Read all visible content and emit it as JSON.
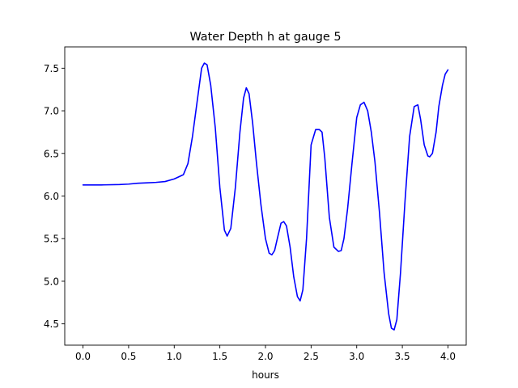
{
  "chart_data": {
    "type": "line",
    "title": "Water Depth h at gauge 5",
    "xlabel": "hours",
    "ylabel": "",
    "xlim": [
      -0.2,
      4.2
    ],
    "ylim": [
      4.25,
      7.75
    ],
    "xticks": [
      0.0,
      0.5,
      1.0,
      1.5,
      2.0,
      2.5,
      3.0,
      3.5,
      4.0
    ],
    "xtick_labels": [
      "0.0",
      "0.5",
      "1.0",
      "1.5",
      "2.0",
      "2.5",
      "3.0",
      "3.5",
      "4.0"
    ],
    "yticks": [
      4.5,
      5.0,
      5.5,
      6.0,
      6.5,
      7.0,
      7.5
    ],
    "ytick_labels": [
      "4.5",
      "5.0",
      "5.5",
      "6.0",
      "6.5",
      "7.0",
      "7.5"
    ],
    "grid": false,
    "legend": "none",
    "series": [
      {
        "color": "#0000ff",
        "x": [
          0.0,
          0.2,
          0.4,
          0.5,
          0.6,
          0.7,
          0.8,
          0.9,
          1.0,
          1.1,
          1.15,
          1.2,
          1.25,
          1.3,
          1.33,
          1.36,
          1.4,
          1.45,
          1.5,
          1.55,
          1.58,
          1.62,
          1.67,
          1.72,
          1.76,
          1.79,
          1.82,
          1.86,
          1.9,
          1.95,
          2.0,
          2.04,
          2.07,
          2.1,
          2.13,
          2.17,
          2.2,
          2.23,
          2.27,
          2.31,
          2.35,
          2.38,
          2.41,
          2.45,
          2.5,
          2.55,
          2.59,
          2.62,
          2.65,
          2.7,
          2.75,
          2.8,
          2.83,
          2.86,
          2.9,
          2.95,
          3.0,
          3.04,
          3.08,
          3.12,
          3.16,
          3.2,
          3.25,
          3.3,
          3.35,
          3.38,
          3.41,
          3.44,
          3.48,
          3.53,
          3.58,
          3.63,
          3.67,
          3.7,
          3.74,
          3.78,
          3.8,
          3.83,
          3.87,
          3.9,
          3.94,
          3.97,
          4.0
        ],
        "y": [
          6.13,
          6.13,
          6.135,
          6.14,
          6.15,
          6.155,
          6.16,
          6.17,
          6.2,
          6.25,
          6.38,
          6.7,
          7.1,
          7.5,
          7.56,
          7.54,
          7.3,
          6.8,
          6.1,
          5.6,
          5.53,
          5.62,
          6.1,
          6.75,
          7.15,
          7.27,
          7.2,
          6.85,
          6.4,
          5.9,
          5.5,
          5.33,
          5.31,
          5.36,
          5.5,
          5.68,
          5.7,
          5.65,
          5.4,
          5.05,
          4.82,
          4.77,
          4.9,
          5.5,
          6.6,
          6.78,
          6.78,
          6.75,
          6.45,
          5.75,
          5.4,
          5.35,
          5.36,
          5.5,
          5.85,
          6.4,
          6.92,
          7.07,
          7.1,
          7.0,
          6.75,
          6.4,
          5.8,
          5.1,
          4.62,
          4.45,
          4.43,
          4.55,
          5.1,
          5.95,
          6.7,
          7.05,
          7.07,
          6.9,
          6.6,
          6.47,
          6.46,
          6.5,
          6.75,
          7.05,
          7.3,
          7.43,
          7.48
        ]
      }
    ]
  }
}
